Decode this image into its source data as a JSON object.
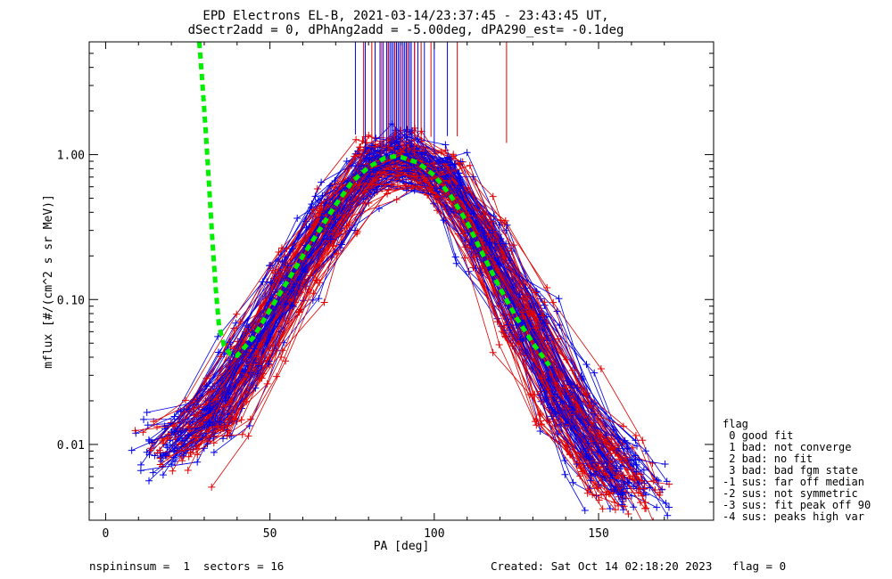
{
  "title_line1": "EPD Electrons EL-B, 2021-03-14/23:37:45 - 23:43:45 UT,",
  "title_line2": "dSectr2add = 0, dPhAng2add = -5.00deg, dPA290_est=  -0.1deg",
  "footer": {
    "left": "nspininsum =  1  sectors = 16",
    "right": "Created: Sat Oct 14 02:18:20 2023   flag = 0"
  },
  "legend": {
    "title": "flag",
    "items": [
      " 0 good fit",
      " 1 bad: not converge",
      " 2 bad: no fit",
      " 3 bad: bad fgm state",
      "-1 sus: far off median",
      "-2 sus: not symmetric",
      "-3 sus: fit peak off 90",
      "-4 sus: peaks high var"
    ]
  },
  "colors": {
    "red": "#e00000",
    "blue": "#0000e8",
    "fit": "#00ee00"
  },
  "chart_data": {
    "type": "line",
    "xlabel": "PA [deg]",
    "ylabel": "mflux [#/(cm^2 s sr MeV)]",
    "xlim": [
      -5,
      185
    ],
    "ylim": [
      0.003,
      6.0
    ],
    "yscale": "log",
    "x_ticks": [
      0,
      50,
      100,
      150
    ],
    "y_ticks": [
      {
        "value": 0.01,
        "label": "0.01"
      },
      {
        "value": 0.1,
        "label": "0.10"
      },
      {
        "value": 1.0,
        "label": "1.00"
      }
    ],
    "fit_curve": {
      "x": [
        28.5,
        29.5,
        30.5,
        31.5,
        32.5,
        33.5,
        34.5,
        36,
        38,
        40,
        45,
        50,
        55,
        60,
        65,
        70,
        75,
        80,
        85,
        88,
        90,
        95,
        100,
        105,
        110,
        115,
        120,
        125,
        130,
        135
      ],
      "y": [
        6.0,
        3.0,
        1.4,
        0.6,
        0.25,
        0.12,
        0.066,
        0.048,
        0.042,
        0.041,
        0.055,
        0.085,
        0.13,
        0.2,
        0.3,
        0.45,
        0.65,
        0.82,
        0.95,
        0.97,
        0.96,
        0.88,
        0.72,
        0.52,
        0.34,
        0.2,
        0.12,
        0.075,
        0.05,
        0.035
      ]
    },
    "spectra": {
      "pa": [
        20,
        32,
        44,
        56,
        68,
        80,
        92,
        104,
        116,
        128,
        140,
        152,
        160
      ],
      "template": [
        0.01,
        0.016,
        0.045,
        0.13,
        0.36,
        0.8,
        0.9,
        0.65,
        0.25,
        0.07,
        0.02,
        0.008,
        0.005
      ],
      "count": 150,
      "description_free": true
    },
    "spikes": {
      "blue_x": [
        76,
        79,
        82,
        83.5,
        84.5,
        85.5,
        86,
        86.5,
        87,
        87.5,
        88,
        88.5,
        89,
        89.5,
        90,
        90.5,
        91,
        91.5,
        92,
        92.5,
        93,
        94,
        95,
        97,
        100,
        104
      ],
      "red_x": [
        78.5,
        81,
        84,
        86,
        88,
        90,
        92,
        94,
        96,
        99,
        107,
        122
      ]
    }
  }
}
